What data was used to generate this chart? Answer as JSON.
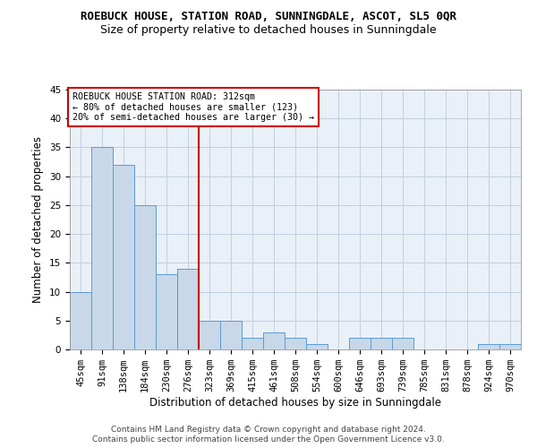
{
  "title": "ROEBUCK HOUSE, STATION ROAD, SUNNINGDALE, ASCOT, SL5 0QR",
  "subtitle": "Size of property relative to detached houses in Sunningdale",
  "xlabel": "Distribution of detached houses by size in Sunningdale",
  "ylabel": "Number of detached properties",
  "categories": [
    "45sqm",
    "91sqm",
    "138sqm",
    "184sqm",
    "230sqm",
    "276sqm",
    "323sqm",
    "369sqm",
    "415sqm",
    "461sqm",
    "508sqm",
    "554sqm",
    "600sqm",
    "646sqm",
    "693sqm",
    "739sqm",
    "785sqm",
    "831sqm",
    "878sqm",
    "924sqm",
    "970sqm"
  ],
  "values": [
    10,
    35,
    32,
    25,
    13,
    14,
    5,
    5,
    2,
    3,
    2,
    1,
    0,
    2,
    2,
    2,
    0,
    0,
    0,
    1,
    1
  ],
  "bar_color": "#c8d8e8",
  "bar_edge_color": "#5b9bd5",
  "reference_line_x": 5.5,
  "annotation_title": "ROEBUCK HOUSE STATION ROAD: 312sqm",
  "annotation_line1": "← 80% of detached houses are smaller (123)",
  "annotation_line2": "20% of semi-detached houses are larger (30) →",
  "annotation_box_color": "#ffffff",
  "annotation_box_edge_color": "#cc0000",
  "ref_line_color": "#cc0000",
  "ylim": [
    0,
    45
  ],
  "yticks": [
    0,
    5,
    10,
    15,
    20,
    25,
    30,
    35,
    40,
    45
  ],
  "footer_line1": "Contains HM Land Registry data © Crown copyright and database right 2024.",
  "footer_line2": "Contains public sector information licensed under the Open Government Licence v3.0.",
  "background_color": "#ffffff",
  "plot_bg_color": "#eaf0f8",
  "grid_color": "#c0d0e0",
  "title_fontsize": 9,
  "subtitle_fontsize": 9,
  "axis_label_fontsize": 8.5,
  "tick_fontsize": 7.5,
  "annotation_fontsize": 7.2,
  "footer_fontsize": 6.5
}
